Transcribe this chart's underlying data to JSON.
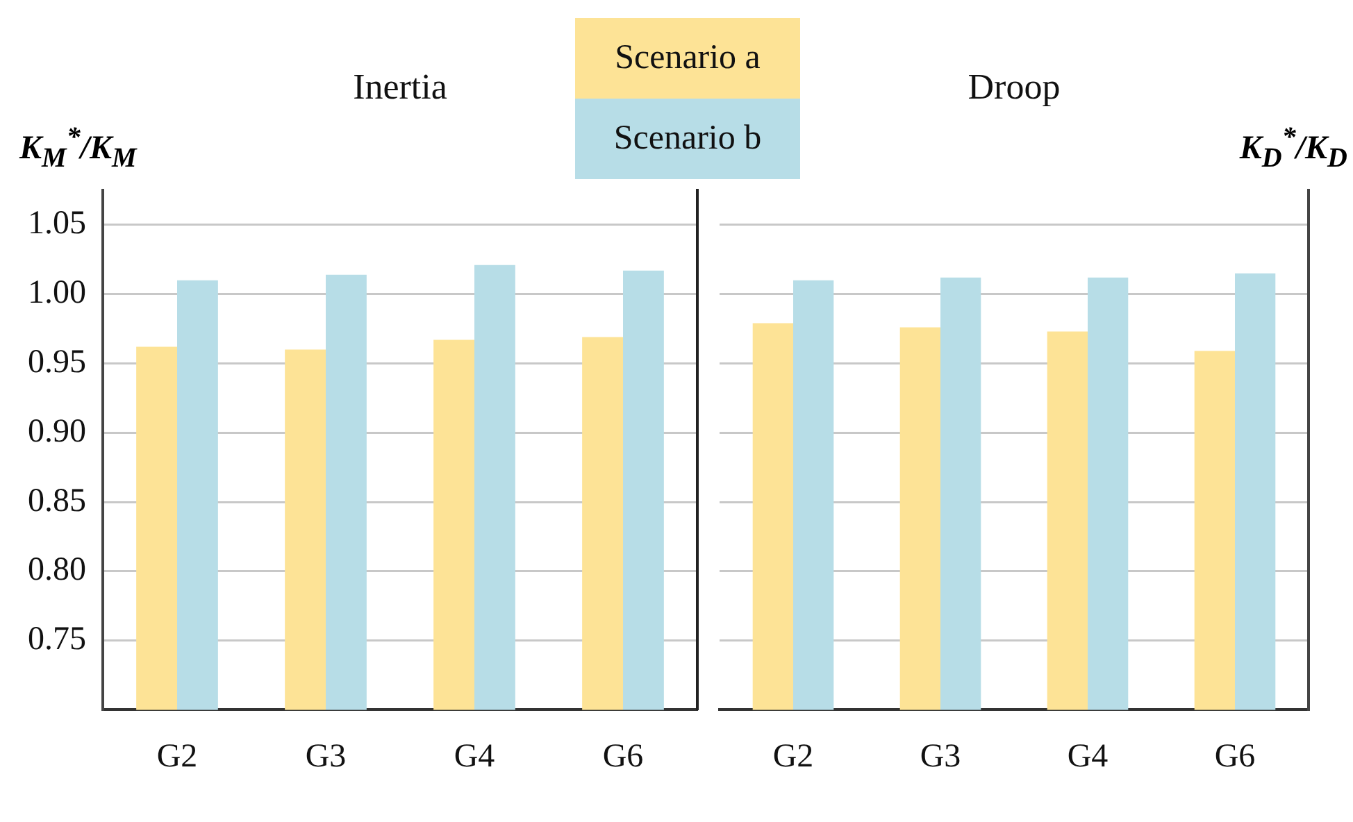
{
  "chart_data": [
    {
      "type": "bar",
      "title": "Inertia",
      "ylabel": "K$_{M}$$^{*}$/K$_{M}$",
      "categories": [
        "G2",
        "G3",
        "G4",
        "G6"
      ],
      "series": [
        {
          "name": "Scenario a",
          "color": "#fde396",
          "values": [
            0.962,
            0.96,
            0.967,
            0.969
          ]
        },
        {
          "name": "Scenario b",
          "color": "#b7dde7",
          "values": [
            1.01,
            1.014,
            1.021,
            1.017
          ]
        }
      ],
      "ylim": [
        0.7,
        1.075
      ],
      "yticks": [
        {
          "value": 0.75,
          "label": "0.75"
        },
        {
          "value": 0.8,
          "label": "0.80"
        },
        {
          "value": 0.85,
          "label": "0.85"
        },
        {
          "value": 0.9,
          "label": "0.90"
        },
        {
          "value": 0.95,
          "label": "0.95"
        },
        {
          "value": 1,
          "label": "1.00"
        },
        {
          "value": 1.05,
          "label": "1.05"
        }
      ],
      "grid": "y",
      "legend": "top right"
    },
    {
      "type": "bar",
      "title": "Droop",
      "ylabel": "K$_{D}$$^{*}$/K$_{D}$",
      "categories": [
        "G2",
        "G3",
        "G4",
        "G6"
      ],
      "series": [
        {
          "color": "#fde396",
          "values": [
            0.979,
            0.976,
            0.973,
            0.959
          ]
        },
        {
          "color": "#b7dde7",
          "values": [
            1.01,
            1.012,
            1.012,
            1.015
          ]
        }
      ],
      "ylim": [
        0.7,
        1.075
      ],
      "yticks": [
        0.75,
        0.8,
        0.85,
        0.9,
        0.95,
        1,
        1.05
      ],
      "tick_labels": "x",
      "grid": "y"
    }
  ]
}
